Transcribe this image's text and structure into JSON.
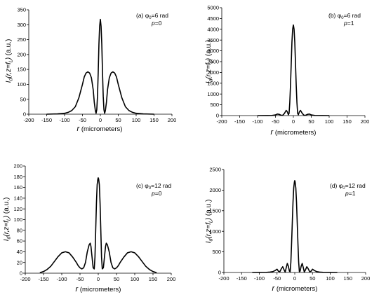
{
  "chart_data": [
    {
      "type": "line",
      "annotation": {
        "panel": "(a)",
        "phi_text": "φ",
        "phi_sub": "0",
        "phi_value": "=6 rad",
        "p_label": "p",
        "p_value": "=0"
      },
      "xlabel": {
        "symbol": "r",
        "unit": " (micrometers)"
      },
      "ylabel": {
        "main": "I",
        "sub1": "d",
        "mid": "(r,z=f",
        "sub2": "L",
        "tail": ")",
        "unit": " (a.u.)"
      },
      "xlim": [
        -200,
        200
      ],
      "ylim": [
        0,
        350
      ],
      "xticks": [
        -200,
        -150,
        -100,
        -50,
        0,
        50,
        100,
        150,
        200
      ],
      "yticks": [
        0,
        50,
        100,
        150,
        200,
        250,
        300,
        350
      ],
      "series": [
        {
          "x": [
            -150,
            -120,
            -100,
            -90,
            -80,
            -70,
            -60,
            -50,
            -45,
            -40,
            -35,
            -30,
            -25,
            -20,
            -17,
            -14,
            -12,
            -10,
            -8,
            -6,
            -4,
            -2,
            0,
            2,
            4,
            6,
            8,
            10,
            12,
            14,
            17,
            20,
            25,
            30,
            35,
            40,
            45,
            50,
            60,
            70,
            80,
            90,
            100,
            120,
            150
          ],
          "y": [
            0,
            1,
            3,
            6,
            12,
            25,
            55,
            100,
            125,
            138,
            142,
            138,
            122,
            82,
            40,
            12,
            3,
            15,
            60,
            140,
            235,
            295,
            318,
            295,
            235,
            140,
            60,
            15,
            3,
            12,
            40,
            82,
            122,
            138,
            142,
            138,
            125,
            100,
            55,
            25,
            12,
            6,
            3,
            1,
            0
          ]
        }
      ]
    },
    {
      "type": "line",
      "annotation": {
        "panel": "(b)",
        "phi_text": "φ",
        "phi_sub": "0",
        "phi_value": "=6 rad",
        "p_label": "p",
        "p_value": "=1"
      },
      "xlabel": {
        "symbol": "r",
        "unit": " (micrometers)"
      },
      "ylabel": {
        "main": "I",
        "sub1": "d",
        "mid": "(r,z=f",
        "sub2": "L",
        "tail": ")",
        "unit": " (a.u.)"
      },
      "xlim": [
        -200,
        200
      ],
      "ylim": [
        0,
        5000
      ],
      "xticks": [
        -200,
        -150,
        -100,
        -50,
        0,
        50,
        100,
        150,
        200
      ],
      "yticks": [
        0,
        500,
        1000,
        1500,
        2000,
        2500,
        3000,
        3500,
        4000,
        4500,
        5000
      ],
      "series": [
        {
          "x": [
            -100,
            -60,
            -50,
            -45,
            -40,
            -35,
            -30,
            -25,
            -20,
            -17,
            -14,
            -12,
            -10,
            -8,
            -6,
            -4,
            -2,
            0,
            2,
            4,
            6,
            8,
            10,
            12,
            14,
            17,
            20,
            25,
            30,
            35,
            40,
            45,
            50,
            60,
            100
          ],
          "y": [
            0,
            5,
            30,
            70,
            60,
            20,
            10,
            100,
            240,
            180,
            40,
            100,
            600,
            1400,
            2400,
            3400,
            4000,
            4200,
            4000,
            3400,
            2400,
            1400,
            600,
            100,
            40,
            180,
            240,
            100,
            10,
            20,
            60,
            70,
            30,
            5,
            0
          ]
        }
      ]
    },
    {
      "type": "line",
      "annotation": {
        "panel": "(c)",
        "phi_text": "φ",
        "phi_sub": "0",
        "phi_value": "=12 rad",
        "p_label": "p",
        "p_value": "=0"
      },
      "xlabel": {
        "symbol": "r",
        "unit": " (micrometers)"
      },
      "ylabel": {
        "main": "I",
        "sub1": "d",
        "mid": "(r,z=f",
        "sub2": "L",
        "tail": ")",
        "unit": " (a.u.)"
      },
      "xlim": [
        -200,
        200
      ],
      "ylim": [
        0,
        200
      ],
      "xticks": [
        -200,
        -150,
        -100,
        -50,
        0,
        50,
        100,
        150,
        200
      ],
      "yticks": [
        0,
        20,
        40,
        60,
        80,
        100,
        120,
        140,
        160,
        180,
        200
      ],
      "series": [
        {
          "x": [
            -160,
            -150,
            -140,
            -130,
            -120,
            -110,
            -100,
            -90,
            -80,
            -70,
            -60,
            -55,
            -50,
            -45,
            -40,
            -35,
            -30,
            -25,
            -22,
            -20,
            -17,
            -14,
            -11,
            -9,
            -7,
            -5,
            -3,
            -1,
            0,
            1,
            3,
            5,
            7,
            9,
            11,
            14,
            17,
            20,
            22,
            25,
            30,
            35,
            40,
            45,
            50,
            55,
            60,
            70,
            80,
            90,
            100,
            110,
            120,
            130,
            140,
            150,
            160
          ],
          "y": [
            1,
            3,
            7,
            13,
            22,
            31,
            38,
            40,
            38,
            30,
            20,
            14,
            10,
            8,
            10,
            20,
            40,
            53,
            56,
            50,
            30,
            10,
            8,
            30,
            80,
            130,
            165,
            176,
            178,
            176,
            165,
            130,
            80,
            30,
            8,
            10,
            30,
            50,
            56,
            53,
            40,
            20,
            10,
            8,
            10,
            14,
            20,
            30,
            38,
            40,
            38,
            31,
            22,
            13,
            7,
            3,
            1
          ]
        }
      ]
    },
    {
      "type": "line",
      "annotation": {
        "panel": "(d)",
        "phi_text": "φ",
        "phi_sub": "0",
        "phi_value": "=12 rad",
        "p_label": "p",
        "p_value": "=1"
      },
      "xlabel": {
        "symbol": "r",
        "unit": " (micrometers)"
      },
      "ylabel": {
        "main": "I",
        "sub1": "d",
        "mid": "(r,z=f",
        "sub2": "L",
        "tail": ")",
        "unit": " (a.u.)"
      },
      "xlim": [
        -200,
        200
      ],
      "ylim": [
        0,
        2500
      ],
      "xticks": [
        -200,
        -150,
        -100,
        -50,
        0,
        50,
        100,
        150,
        200
      ],
      "yticks": [
        0,
        500,
        1000,
        1500,
        2000,
        2500
      ],
      "series": [
        {
          "x": [
            -120,
            -80,
            -70,
            -62,
            -55,
            -50,
            -46,
            -42,
            -38,
            -34,
            -30,
            -27,
            -24,
            -21,
            -18,
            -15,
            -13,
            -11,
            -9,
            -7,
            -5,
            -3,
            -1,
            0,
            1,
            3,
            5,
            7,
            9,
            11,
            13,
            15,
            18,
            21,
            24,
            27,
            30,
            34,
            38,
            42,
            46,
            50,
            55,
            62,
            70,
            80,
            120
          ],
          "y": [
            0,
            3,
            10,
            20,
            50,
            80,
            30,
            20,
            90,
            140,
            60,
            10,
            120,
            220,
            150,
            30,
            20,
            250,
            700,
            1200,
            1700,
            2050,
            2200,
            2230,
            2200,
            2050,
            1700,
            1200,
            700,
            250,
            20,
            30,
            150,
            220,
            120,
            10,
            60,
            140,
            90,
            20,
            30,
            80,
            50,
            20,
            10,
            3,
            0
          ]
        }
      ]
    }
  ]
}
